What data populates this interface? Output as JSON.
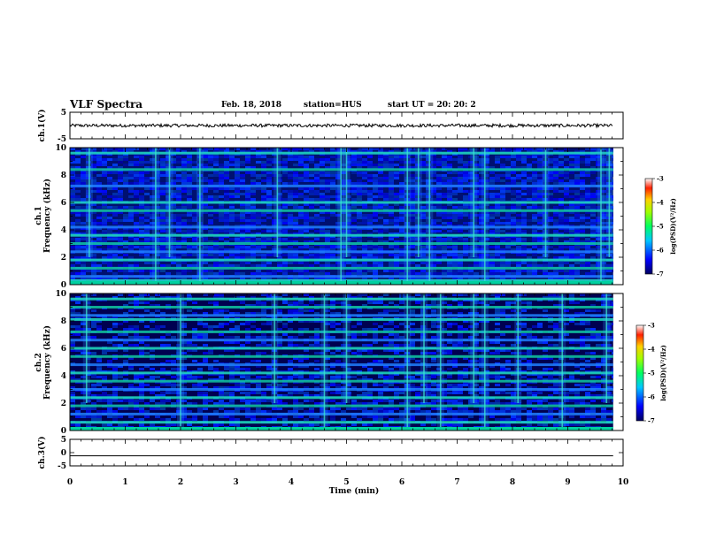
{
  "header": {
    "title": "VLF Spectra",
    "date": "Feb. 18, 2018",
    "station": "station=HUS",
    "start": "start UT =  20: 20: 2"
  },
  "chart_data": [
    {
      "type": "line",
      "panel": "ch1-waveform",
      "ylabel": "ch.1(V)",
      "ylim": [
        -5,
        5
      ],
      "yticks": [
        "5",
        "-5"
      ],
      "xlim": [
        0,
        10
      ],
      "trace_end_min": 9.82,
      "amplitude_V": 0.6
    },
    {
      "type": "heatmap",
      "panel": "ch1-spectrogram",
      "ylabel_line1": "ch.1",
      "ylabel_line2": "Frequency (kHz)",
      "ylim": [
        0,
        10
      ],
      "yticks": [
        "0",
        "2",
        "4",
        "6",
        "8",
        "10"
      ],
      "xlim": [
        0,
        10
      ],
      "data_end_min": 9.82,
      "colorbar": {
        "label": "log(PSD)(V²/Hz)",
        "range": [
          -7,
          -3
        ],
        "ticks": [
          "-3",
          "-4",
          "-5",
          "-6",
          "-7"
        ]
      },
      "bands_khz": [
        0.3,
        0.6,
        1.2,
        1.8,
        2.4,
        3.0,
        3.6,
        4.2,
        5.4,
        6.0,
        7.2,
        8.4,
        9.6
      ],
      "bursts_min": [
        0.35,
        1.55,
        1.8,
        2.35,
        3.75,
        4.9,
        5.0,
        6.1,
        6.3,
        6.5,
        7.3,
        7.5,
        8.6,
        9.6,
        9.75
      ]
    },
    {
      "type": "heatmap",
      "panel": "ch2-spectrogram",
      "ylabel_line1": "ch.2",
      "ylabel_line2": "Frequency (kHz)",
      "ylim": [
        0,
        10
      ],
      "yticks": [
        "0",
        "2",
        "4",
        "6",
        "8",
        "10"
      ],
      "xlim": [
        0,
        10
      ],
      "data_end_min": 9.82,
      "colorbar": {
        "label": "log(PSD)(V²/Hz)",
        "range": [
          -7,
          -3
        ],
        "ticks": [
          "-3",
          "-4",
          "-5",
          "-6",
          "-7"
        ]
      },
      "bands_khz": [
        0.6,
        1.2,
        1.8,
        2.4,
        3.0,
        3.6,
        4.2,
        4.8,
        5.4,
        6.0,
        6.6,
        7.2,
        8.1,
        8.4,
        9.0,
        9.6
      ],
      "bursts_min": [
        0.3,
        2.0,
        3.7,
        4.6,
        5.0,
        6.1,
        6.4,
        6.7,
        7.3,
        7.5,
        8.1,
        8.9,
        9.7
      ]
    },
    {
      "type": "line",
      "panel": "ch3-waveform",
      "ylabel": "ch.3(V)",
      "ylim": [
        -5,
        5
      ],
      "yticks": [
        "5",
        "0",
        "-5"
      ],
      "xlim": [
        0,
        10
      ],
      "trace_end_min": 9.82,
      "level_V": -1.2
    }
  ],
  "x_axis": {
    "label": "Time (min)",
    "ticks": [
      "0",
      "1",
      "2",
      "3",
      "4",
      "5",
      "6",
      "7",
      "8",
      "9",
      "10"
    ]
  },
  "colors": {
    "trace": "#000000",
    "background_dark": "#000040",
    "spectrum_blue": "#0a28d0"
  }
}
